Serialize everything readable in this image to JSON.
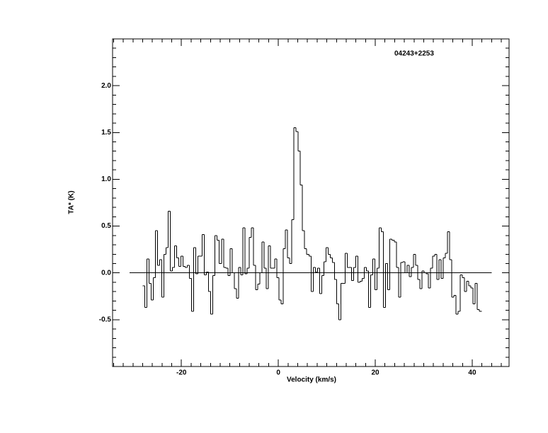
{
  "chart_data": {
    "type": "line",
    "drawstyle": "steps-mid",
    "annotation": "04243+2253",
    "xlabel": "Velocity (km/s)",
    "ylabel": "TA* (K)",
    "color": "#000000",
    "xlim": [
      -34.2,
      47.6
    ],
    "ylim": [
      -1.0,
      2.5
    ],
    "xticks": [
      -20,
      0,
      20,
      40
    ],
    "yticks": [
      {
        "value": -0.5,
        "label": "-0.5"
      },
      {
        "value": 0,
        "label": "0.0"
      },
      {
        "value": 0.5,
        "label": "0.5"
      },
      {
        "value": 1,
        "label": "1.0"
      },
      1.5,
      {
        "value": 2,
        "label": "2.0"
      }
    ],
    "xminorticks": [
      -34,
      -32,
      -30,
      -28,
      -26,
      -24,
      -22,
      -18,
      -16,
      -14,
      -12,
      -10,
      -8,
      -6,
      -4,
      -2,
      2,
      4,
      6,
      8,
      10,
      12,
      14,
      16,
      18,
      22,
      24,
      26,
      28,
      30,
      32,
      34,
      36,
      38,
      42,
      44,
      46
    ],
    "yminorticks": [
      -0.9,
      -0.8,
      -0.7,
      -0.6,
      -0.4,
      -0.3,
      -0.2,
      -0.1,
      0.1,
      0.2,
      0.3,
      0.4,
      0.6,
      0.7,
      0.8,
      0.9,
      1.1,
      1.2,
      1.3,
      1.4,
      1.6,
      1.7,
      1.8,
      1.9,
      2.1,
      2.2,
      2.3,
      2.4
    ],
    "zero_line": {
      "y": 0,
      "x": [
        -30.7,
        44
      ]
    },
    "x": [
      -27.8,
      -27.36,
      -26.92,
      -26.48,
      -26.04,
      -25.6,
      -25.16,
      -24.72,
      -24.28,
      -23.84,
      -23.4,
      -22.96,
      -22.52,
      -22.08,
      -21.64,
      -21.2,
      -20.76,
      -20.32,
      -19.88,
      -19.44,
      -19,
      -18.56,
      -18.12,
      -17.68,
      -17.24,
      -16.8,
      -16.36,
      -15.92,
      -15.48,
      -15.04,
      -14.6,
      -14.16,
      -13.72,
      -13.28,
      -12.84,
      -12.4,
      -11.96,
      -11.52,
      -11.08,
      -10.64,
      -10.2,
      -9.76,
      -9.32,
      -8.88,
      -8.44,
      -8,
      -7.56,
      -7.12,
      -6.68,
      -6.24,
      -5.8,
      -5.36,
      -4.92,
      -4.48,
      -4.04,
      -3.6,
      -3.16,
      -2.72,
      -2.28,
      -1.84,
      -1.4,
      -0.96,
      -0.52,
      -0.08,
      0.36,
      0.8,
      1.24,
      1.68,
      2.12,
      2.56,
      3,
      3.44,
      3.88,
      4.32,
      4.76,
      5.2,
      5.64,
      6.08,
      6.52,
      6.96,
      7.4,
      7.84,
      8.28,
      8.72,
      9.16,
      9.6,
      10.04,
      10.48,
      10.92,
      11.36,
      11.8,
      12.24,
      12.68,
      13.12,
      13.56,
      14,
      14.44,
      14.88,
      15.32,
      15.76,
      16.2,
      16.64,
      17.08,
      17.52,
      17.96,
      18.4,
      18.84,
      19.28,
      19.72,
      20.16,
      20.6,
      21.04,
      21.48,
      21.92,
      22.36,
      22.8,
      23.24,
      23.68,
      24.12,
      24.56,
      25,
      25.44,
      25.88,
      26.32,
      26.76,
      27.2,
      27.64,
      28.08,
      28.52,
      28.96,
      29.4,
      29.84,
      30.28,
      30.72,
      31.16,
      31.6,
      32.04,
      32.48,
      32.92,
      33.36,
      33.8,
      34.24,
      34.68,
      35.12,
      35.56,
      36,
      36.44,
      36.88,
      37.32,
      37.76,
      38.2,
      38.64,
      39.08,
      39.52,
      39.96,
      40.4,
      40.84,
      41.28,
      41.72
    ],
    "values": [
      -0.14,
      -0.37,
      0.15,
      -0.11,
      -0.29,
      -0.05,
      0.45,
      0.08,
      0.14,
      -0.26,
      0.2,
      0.27,
      0.66,
      0.02,
      0.06,
      0.29,
      0.16,
      0.07,
      0.18,
      0.07,
      0.06,
      0.08,
      -0.06,
      -0.41,
      0.27,
      -0.01,
      0.18,
      0.18,
      0.41,
      -0.02,
      0.01,
      -0.2,
      -0.44,
      -0.03,
      0.4,
      0.35,
      0.1,
      0.36,
      0.06,
      0.05,
      -0.03,
      0.26,
      0,
      -0.17,
      -0.27,
      0.06,
      -0.02,
      0.48,
      -0.01,
      0.05,
      0.38,
      0.48,
      0.08,
      -0.18,
      -0.12,
      0,
      0.33,
      0.05,
      -0.17,
      0.29,
      0.05,
      0.05,
      0.15,
      -0.05,
      -0.29,
      -0.33,
      0.26,
      0.46,
      0.16,
      0.1,
      0.57,
      1.55,
      1.51,
      1.3,
      0.94,
      0.45,
      0.26,
      0.2,
      0.18,
      -0.2,
      0.06,
      0.01,
      0.05,
      -0.22,
      -0.03,
      0.12,
      0.27,
      0.2,
      0.16,
      0.11,
      -0.07,
      -0.33,
      -0.5,
      -0.11,
      -0.11,
      0.21,
      0.06,
      0.06,
      -0.08,
      0.06,
      0.18,
      -0.1,
      -0.09,
      -0.06,
      0.06,
      0.02,
      -0.37,
      -0.02,
      0.15,
      -0.18,
      0.05,
      0.48,
      0.44,
      -0.37,
      0.1,
      -0.18,
      0.36,
      0.35,
      0.33,
      0.06,
      -0.26,
      0.11,
      0.12,
      0,
      0.08,
      -0.04,
      0.06,
      0.2,
      0.08,
      -0.07,
      -0.17,
      0.02,
      0,
      -0.01,
      -0.16,
      0.05,
      0.18,
      0.2,
      -0.07,
      0.14,
      -0.06,
      0.16,
      0.21,
      0.44,
      0.14,
      -0.26,
      -0.24,
      -0.44,
      -0.41,
      -0.02,
      -0.05,
      -0.2,
      -0.09,
      -0.14,
      -0.16,
      -0.33,
      -0.11,
      -0.39,
      -0.41
    ]
  }
}
